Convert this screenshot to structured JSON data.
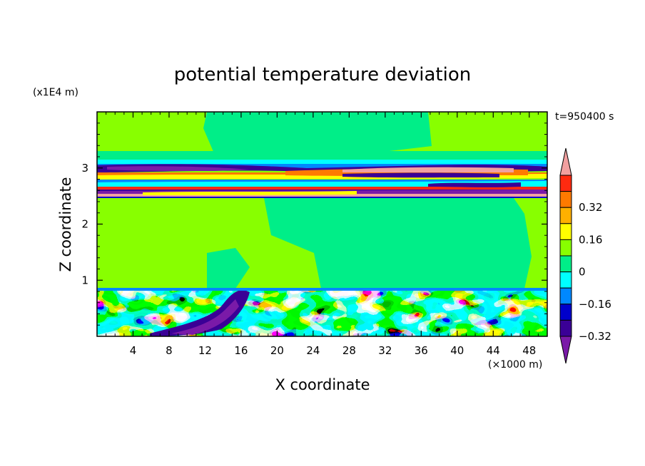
{
  "chart_data": {
    "type": "heatmap",
    "title": "potential temperature deviation",
    "time_label": "t=950400 s",
    "xlabel": "X coordinate",
    "ylabel": "Z coordinate",
    "x_unit": "(×1000 m)",
    "y_unit": "(x1E4 m)",
    "xlim": [
      0,
      50
    ],
    "ylim": [
      0,
      4
    ],
    "x_ticks": [
      "4",
      "8",
      "12",
      "16",
      "20",
      "24",
      "28",
      "32",
      "36",
      "40",
      "44",
      "48"
    ],
    "y_ticks": [
      "1",
      "2",
      "3"
    ],
    "colorbar": {
      "labels": [
        "0.32",
        "0.16",
        "0",
        "−0.16",
        "−0.32"
      ],
      "colors": [
        "#f2a0a0",
        "#ff2a10",
        "#ff7a00",
        "#ffb000",
        "#ffff00",
        "#88ff00",
        "#00ee88",
        "#00ffff",
        "#0088ff",
        "#0000cc",
        "#3a0096",
        "#7a1aa8"
      ]
    },
    "regions": [
      {
        "value": "0.08",
        "zone": "upper background above z 3.2"
      },
      {
        "value": "0",
        "zone": "mid background z 0.9–2.5"
      },
      {
        "value": "−0.4 / 0.4",
        "zone": "alternating layers z 2.5–3.1"
      },
      {
        "value": "−0.4 / 0.4",
        "zone": "turbulent boundary layer z 0–0.85"
      }
    ]
  }
}
